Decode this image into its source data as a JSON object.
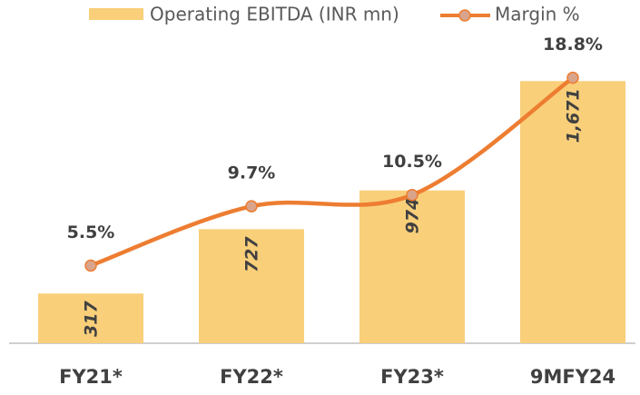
{
  "chart_data": {
    "type": "bar_line",
    "categories": [
      "FY21*",
      "FY22*",
      "FY23*",
      "9MFY24"
    ],
    "series": [
      {
        "name": "Operating EBITDA (INR mn)",
        "type": "bar",
        "color": "#f9cf7a",
        "values": [
          317,
          727,
          974,
          1671
        ],
        "value_labels": [
          "317",
          "727",
          "974",
          "1,671"
        ]
      },
      {
        "name": "Margin %",
        "type": "line",
        "axis": "y2",
        "color": "#ed7d31",
        "marker_color": "#d9a48c",
        "values": [
          5.5,
          9.7,
          10.5,
          18.8
        ],
        "value_labels": [
          "5.5%",
          "9.7%",
          "10.5%",
          "18.8%"
        ]
      }
    ],
    "ylim": [
      0,
      1800
    ],
    "y2lim": [
      0,
      20
    ],
    "legend": "top"
  }
}
